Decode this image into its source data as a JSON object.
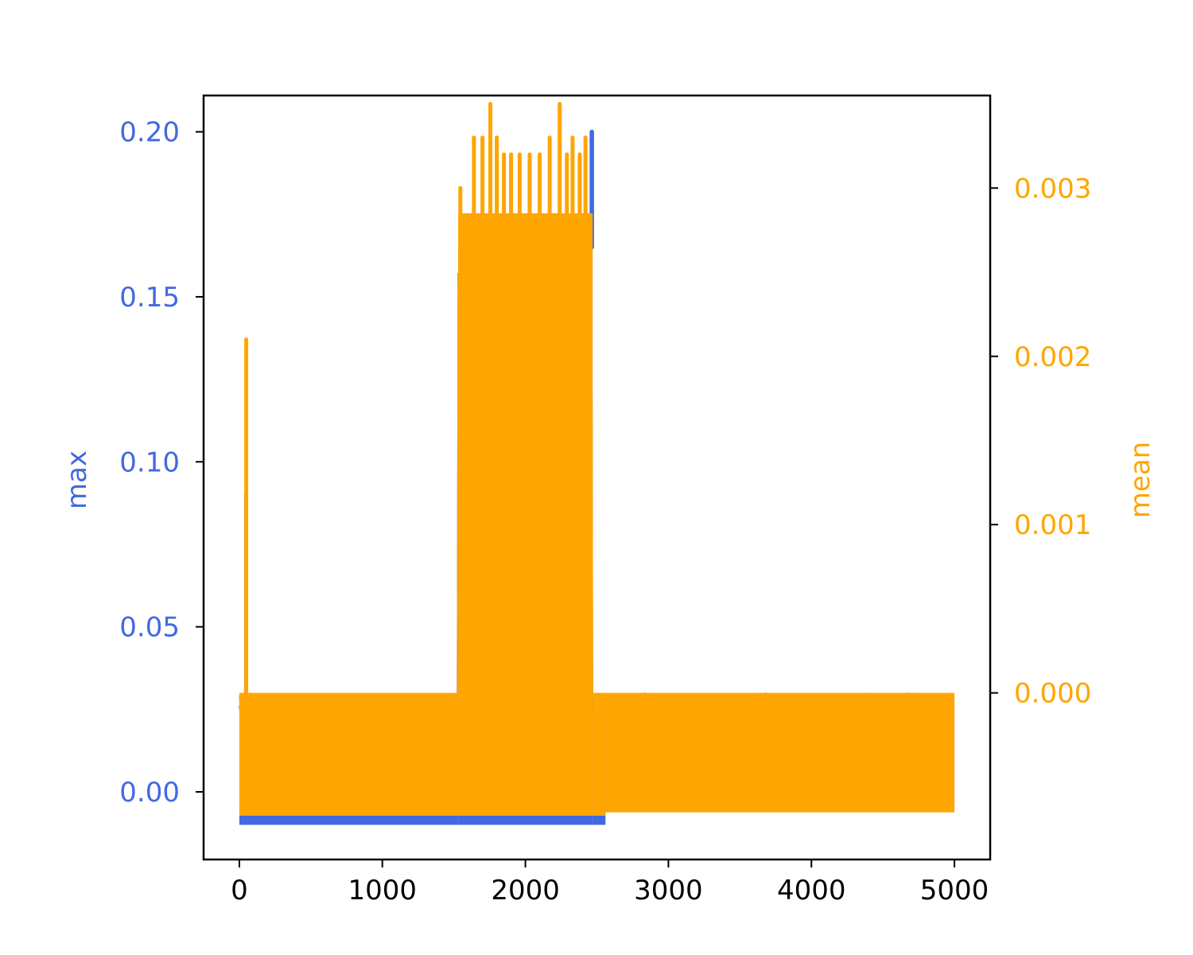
{
  "chart_data": {
    "type": "line",
    "title": "",
    "xlabel": "",
    "xlim": [
      -250,
      5250
    ],
    "x_ticks": [
      0,
      1000,
      2000,
      3000,
      4000,
      5000
    ],
    "x_tick_labels": [
      "0",
      "1000",
      "2000",
      "3000",
      "4000",
      "5000"
    ],
    "x_tick_color": "#000000",
    "left_axis": {
      "label": "max",
      "color": "#4169E1",
      "ylim": [
        -0.0205,
        0.211
      ],
      "ticks": [
        0.0,
        0.05,
        0.1,
        0.15,
        0.2
      ],
      "tick_labels": [
        "0.00",
        "0.05",
        "0.10",
        "0.15",
        "0.20"
      ]
    },
    "right_axis": {
      "label": "mean",
      "color": "#FFA500",
      "ylim": [
        -0.00099,
        0.00355
      ],
      "ticks": [
        0.0,
        0.001,
        0.002,
        0.003
      ],
      "tick_labels": [
        "0.000",
        "0.001",
        "0.002",
        "0.003"
      ]
    },
    "series": [
      {
        "name": "max",
        "axis": "left",
        "color": "#4169E1",
        "style": "dense-noise",
        "segments": [
          {
            "x": [
              0,
              1530
            ],
            "low": -0.01,
            "high": 0.028
          },
          {
            "x": [
              1530,
              2470
            ],
            "low": -0.01,
            "high": 0.165
          },
          {
            "x": [
              2470,
              2560
            ],
            "low": -0.01,
            "high": 0.028
          },
          {
            "x": [
              2560,
              5000
            ],
            "low": -0.0055,
            "high": 0.028
          }
        ],
        "peaks": [
          {
            "x": 47,
            "y": 0.09
          },
          {
            "x": 2075,
            "y": 0.028
          },
          {
            "x": 2463,
            "y": 0.2
          },
          {
            "x": 2466,
            "y": 0.2
          }
        ]
      },
      {
        "name": "mean",
        "axis": "right",
        "color": "#FFA500",
        "style": "dense-noise",
        "segments": [
          {
            "x": [
              0,
              1530
            ],
            "low": -0.00073,
            "high": 0.0
          },
          {
            "x": [
              1530,
              2470
            ],
            "low": -0.00073,
            "high": 0.00285
          },
          {
            "x": [
              2470,
              2560
            ],
            "low": -0.00073,
            "high": 0.0
          },
          {
            "x": [
              2560,
              5000
            ],
            "low": -0.00071,
            "high": 0.0
          }
        ],
        "peaks": [
          {
            "x": 48,
            "y": 0.0021
          },
          {
            "x": 1545,
            "y": 0.003
          },
          {
            "x": 1640,
            "y": 0.0033
          },
          {
            "x": 1700,
            "y": 0.0033
          },
          {
            "x": 1755,
            "y": 0.0035
          },
          {
            "x": 1800,
            "y": 0.0033
          },
          {
            "x": 1850,
            "y": 0.0032
          },
          {
            "x": 1900,
            "y": 0.0032
          },
          {
            "x": 1960,
            "y": 0.0032
          },
          {
            "x": 2030,
            "y": 0.0032
          },
          {
            "x": 2100,
            "y": 0.0032
          },
          {
            "x": 2170,
            "y": 0.0033
          },
          {
            "x": 2240,
            "y": 0.0035
          },
          {
            "x": 2290,
            "y": 0.0032
          },
          {
            "x": 2330,
            "y": 0.0033
          },
          {
            "x": 2380,
            "y": 0.0032
          },
          {
            "x": 2420,
            "y": 0.0033
          }
        ]
      }
    ]
  }
}
